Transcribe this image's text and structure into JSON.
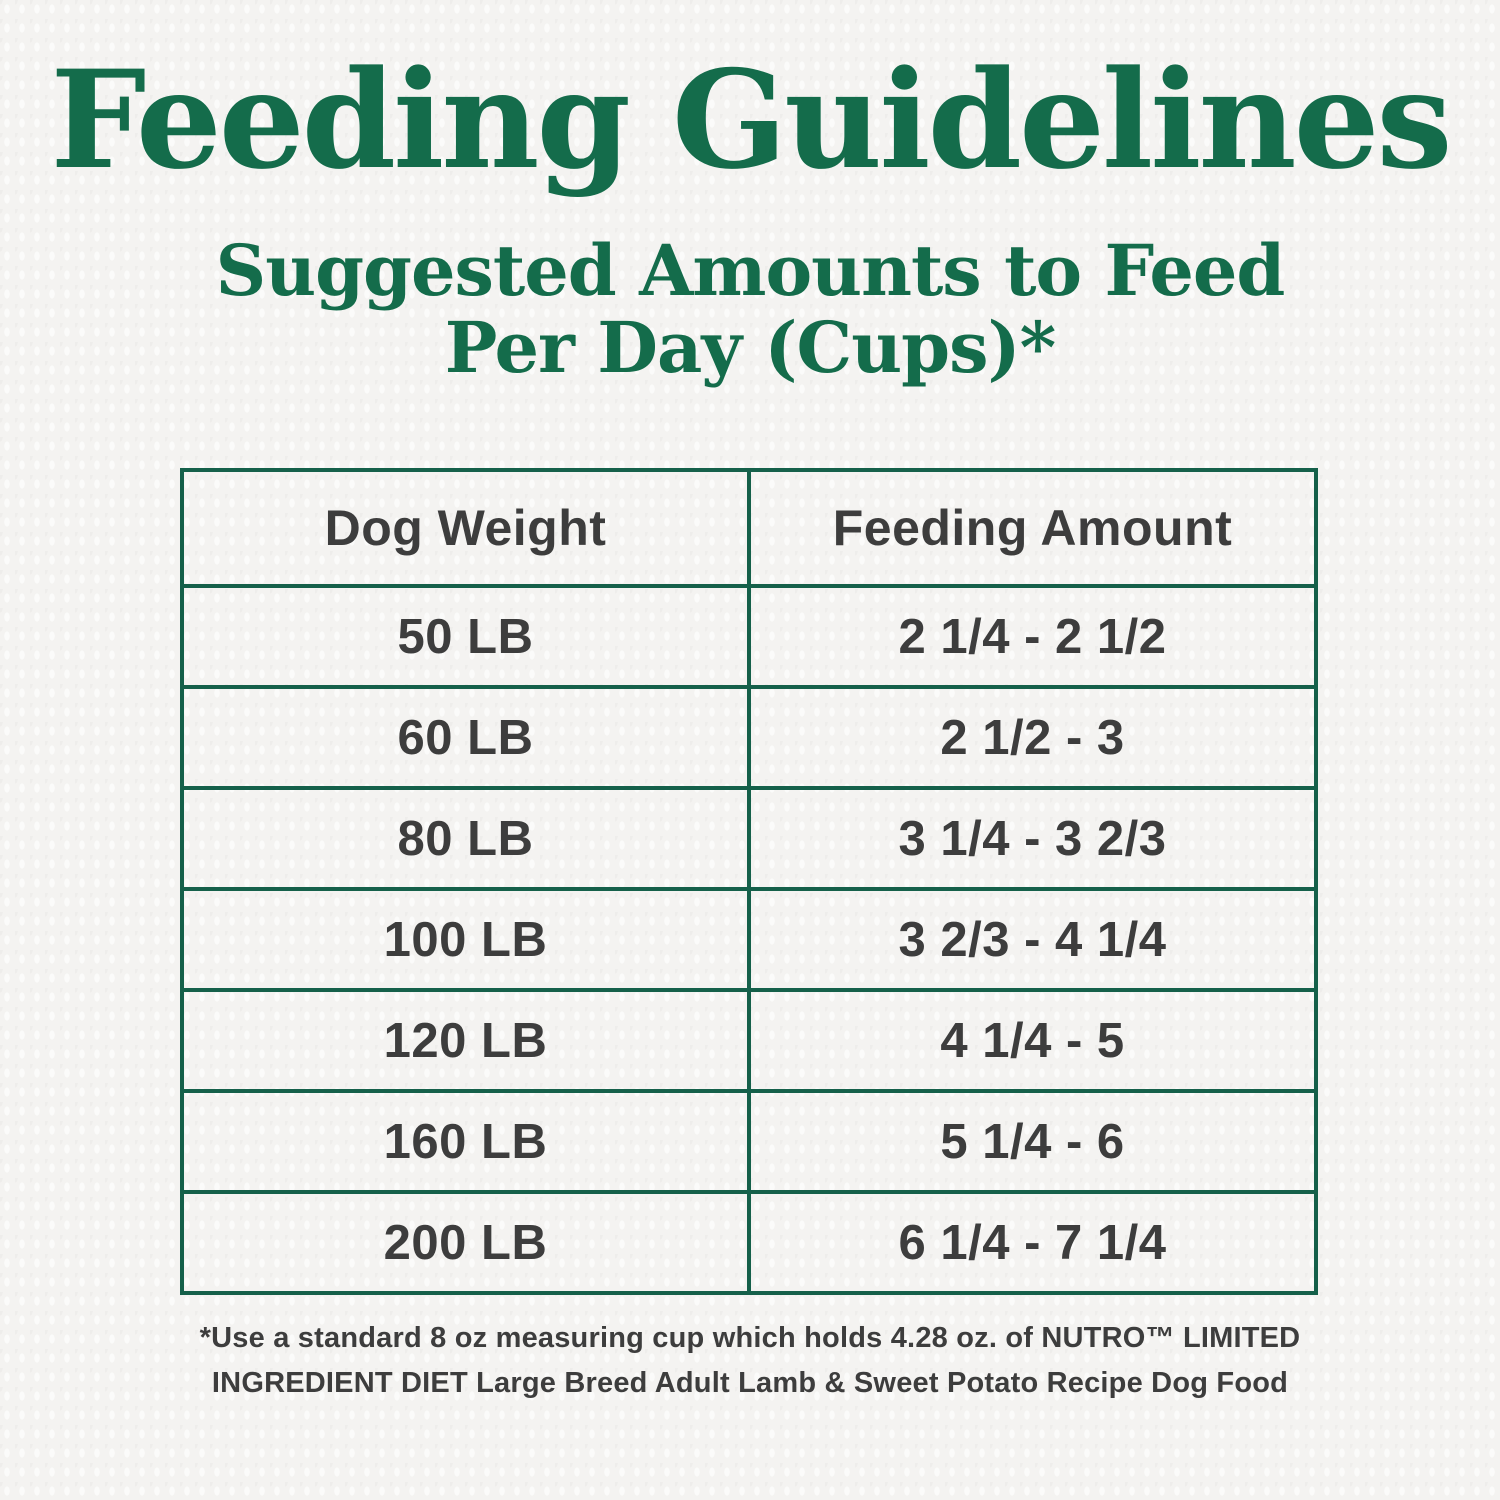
{
  "colors": {
    "accent_green": "#146c4b",
    "table_border_green": "#15604a",
    "text_dark": "#3d3d3d",
    "background": "#f4f3f1"
  },
  "header": {
    "title": "Feeding Guidelines",
    "subtitle_line1": "Suggested Amounts to Feed",
    "subtitle_line2": "Per Day (Cups)*"
  },
  "table": {
    "columns": [
      "Dog Weight",
      "Feeding Amount"
    ],
    "rows": [
      [
        "50 LB",
        "2 1/4 - 2 1/2"
      ],
      [
        "60 LB",
        "2 1/2 - 3"
      ],
      [
        "80 LB",
        "3 1/4 - 3 2/3"
      ],
      [
        "100 LB",
        "3 2/3 - 4 1/4"
      ],
      [
        "120 LB",
        "4 1/4 - 5"
      ],
      [
        "160 LB",
        "5 1/4 - 6"
      ],
      [
        "200 LB",
        "6 1/4 - 7 1/4"
      ]
    ]
  },
  "footnote": {
    "text": "*Use a standard 8 oz measuring cup which holds 4.28 oz. of NUTRO™ LIMITED INGREDIENT DIET Large Breed Adult Lamb & Sweet Potato Recipe Dog Food"
  }
}
